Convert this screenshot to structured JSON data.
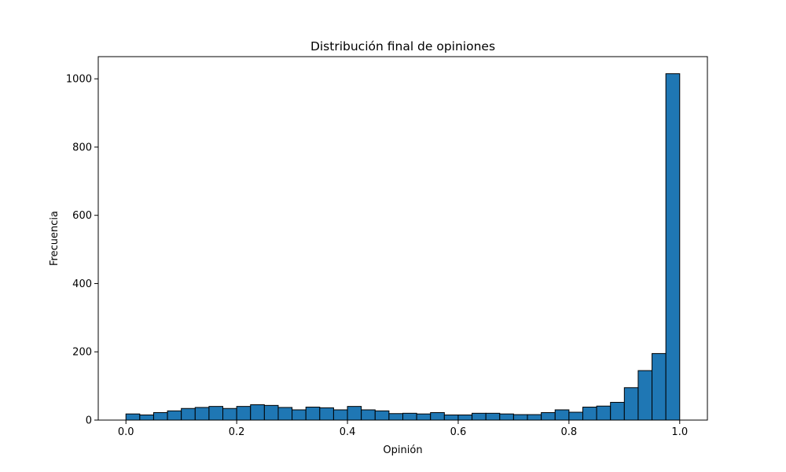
{
  "chart_data": {
    "type": "bar",
    "title": "Distribución final de opiniones",
    "xlabel": "Opinión",
    "ylabel": "Frecuencia",
    "bin_width": 0.025,
    "bin_start": 0.0,
    "xlim": [
      -0.05,
      1.05
    ],
    "ylim": [
      0,
      1065
    ],
    "xticks": [
      0.0,
      0.2,
      0.4,
      0.6,
      0.8,
      1.0
    ],
    "xtick_labels": [
      "0.0",
      "0.2",
      "0.4",
      "0.6",
      "0.8",
      "1.0"
    ],
    "yticks": [
      0,
      200,
      400,
      600,
      800,
      1000
    ],
    "ytick_labels": [
      "0",
      "200",
      "400",
      "600",
      "800",
      "1000"
    ],
    "values": [
      18,
      15,
      22,
      27,
      34,
      37,
      40,
      34,
      40,
      45,
      43,
      37,
      30,
      38,
      36,
      30,
      40,
      30,
      27,
      19,
      20,
      18,
      22,
      15,
      15,
      20,
      20,
      18,
      16,
      16,
      22,
      30,
      23,
      38,
      41,
      52,
      95,
      145,
      195,
      1015
    ],
    "bar_color": "#1f77b4",
    "edge_color": "#000000",
    "grid": false,
    "legend": "none"
  }
}
